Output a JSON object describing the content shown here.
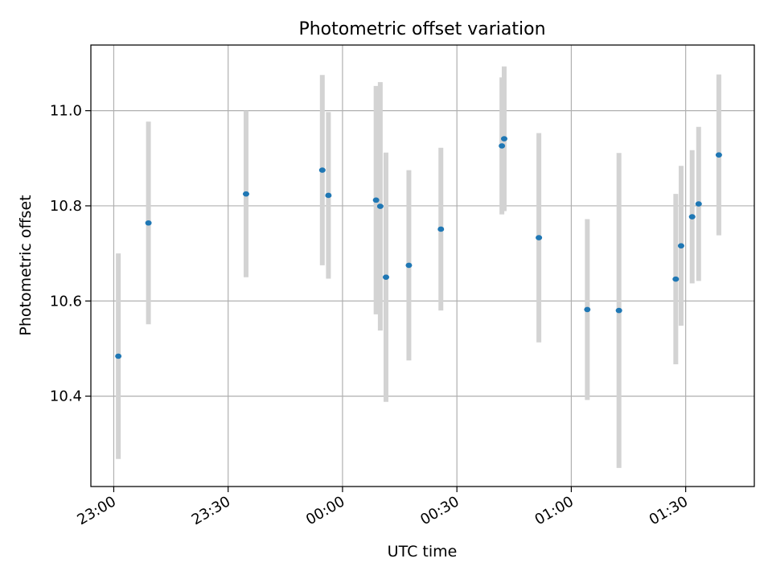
{
  "chart_data": {
    "type": "scatter",
    "title": "Photometric offset variation",
    "xlabel": "UTC time",
    "ylabel": "Photometric offset",
    "x_unit": "minutes",
    "x_reference": "23:00",
    "xlim": [
      -6,
      168
    ],
    "ylim": [
      10.21,
      11.138
    ],
    "x_ticks": [
      {
        "value": 0,
        "label": "23:00"
      },
      {
        "value": 30,
        "label": "23:30"
      },
      {
        "value": 60,
        "label": "00:00"
      },
      {
        "value": 90,
        "label": "00:30"
      },
      {
        "value": 120,
        "label": "01:00"
      },
      {
        "value": 150,
        "label": "01:30"
      }
    ],
    "y_ticks": [
      {
        "value": 10.4,
        "label": "10.4"
      },
      {
        "value": 10.6,
        "label": "10.6"
      },
      {
        "value": 10.8,
        "label": "10.8"
      },
      {
        "value": 11.0,
        "label": "11.0"
      }
    ],
    "grid": true,
    "marker_color": "#1f77b4",
    "errorbar_color": "#d3d3d3",
    "series": [
      {
        "points": [
          {
            "x": 1.2,
            "y": 10.484,
            "err": 0.216
          },
          {
            "x": 9.1,
            "y": 10.764,
            "err": 0.213
          },
          {
            "x": 34.7,
            "y": 10.825,
            "err": 0.175
          },
          {
            "x": 54.7,
            "y": 10.875,
            "err": 0.2
          },
          {
            "x": 56.3,
            "y": 10.822,
            "err": 0.175
          },
          {
            "x": 68.8,
            "y": 10.812,
            "err": 0.24
          },
          {
            "x": 69.9,
            "y": 10.799,
            "err": 0.261
          },
          {
            "x": 71.4,
            "y": 10.65,
            "err": 0.262
          },
          {
            "x": 77.4,
            "y": 10.675,
            "err": 0.2
          },
          {
            "x": 85.8,
            "y": 10.751,
            "err": 0.171
          },
          {
            "x": 101.8,
            "y": 10.926,
            "err": 0.144
          },
          {
            "x": 102.4,
            "y": 10.941,
            "err": 0.152
          },
          {
            "x": 111.5,
            "y": 10.733,
            "err": 0.22
          },
          {
            "x": 124.2,
            "y": 10.582,
            "err": 0.19
          },
          {
            "x": 132.5,
            "y": 10.58,
            "err": 0.331
          },
          {
            "x": 147.4,
            "y": 10.646,
            "err": 0.179
          },
          {
            "x": 148.8,
            "y": 10.716,
            "err": 0.168
          },
          {
            "x": 151.7,
            "y": 10.777,
            "err": 0.14
          },
          {
            "x": 153.4,
            "y": 10.804,
            "err": 0.162
          },
          {
            "x": 158.7,
            "y": 10.907,
            "err": 0.169
          }
        ]
      }
    ]
  }
}
